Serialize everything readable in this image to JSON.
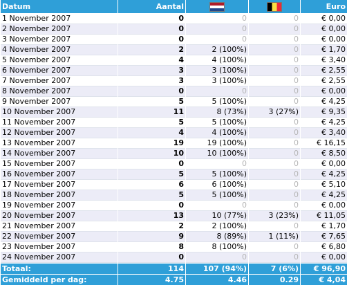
{
  "header": {
    "date": "Datum",
    "count": "Aantal",
    "nl_icon": "netherlands-flag",
    "be_icon": "belgium-flag",
    "euro": "Euro"
  },
  "rows": [
    {
      "date": "1 November 2007",
      "count": "0",
      "nl": "0",
      "be": "0",
      "euro": "€ 0,00"
    },
    {
      "date": "2 November 2007",
      "count": "0",
      "nl": "0",
      "be": "0",
      "euro": "€ 0,00"
    },
    {
      "date": "3 November 2007",
      "count": "0",
      "nl": "0",
      "be": "0",
      "euro": "€ 0,00"
    },
    {
      "date": "4 November 2007",
      "count": "2",
      "nl": "2 (100%)",
      "be": "0",
      "euro": "€ 1,70"
    },
    {
      "date": "5 November 2007",
      "count": "4",
      "nl": "4 (100%)",
      "be": "0",
      "euro": "€ 3,40"
    },
    {
      "date": "6 November 2007",
      "count": "3",
      "nl": "3 (100%)",
      "be": "0",
      "euro": "€ 2,55"
    },
    {
      "date": "7 November 2007",
      "count": "3",
      "nl": "3 (100%)",
      "be": "0",
      "euro": "€ 2,55"
    },
    {
      "date": "8 November 2007",
      "count": "0",
      "nl": "0",
      "be": "0",
      "euro": "€ 0,00"
    },
    {
      "date": "9 November 2007",
      "count": "5",
      "nl": "5 (100%)",
      "be": "0",
      "euro": "€ 4,25"
    },
    {
      "date": "10 November 2007",
      "count": "11",
      "nl": "8 (73%)",
      "be": "3 (27%)",
      "euro": "€ 9,35"
    },
    {
      "date": "11 November 2007",
      "count": "5",
      "nl": "5 (100%)",
      "be": "0",
      "euro": "€ 4,25"
    },
    {
      "date": "12 November 2007",
      "count": "4",
      "nl": "4 (100%)",
      "be": "0",
      "euro": "€ 3,40"
    },
    {
      "date": "13 November 2007",
      "count": "19",
      "nl": "19 (100%)",
      "be": "0",
      "euro": "€ 16,15"
    },
    {
      "date": "14 November 2007",
      "count": "10",
      "nl": "10 (100%)",
      "be": "0",
      "euro": "€ 8,50"
    },
    {
      "date": "15 November 2007",
      "count": "0",
      "nl": "0",
      "be": "0",
      "euro": "€ 0,00"
    },
    {
      "date": "16 November 2007",
      "count": "5",
      "nl": "5 (100%)",
      "be": "0",
      "euro": "€ 4,25"
    },
    {
      "date": "17 November 2007",
      "count": "6",
      "nl": "6 (100%)",
      "be": "0",
      "euro": "€ 5,10"
    },
    {
      "date": "18 November 2007",
      "count": "5",
      "nl": "5 (100%)",
      "be": "0",
      "euro": "€ 4,25"
    },
    {
      "date": "19 November 2007",
      "count": "0",
      "nl": "0",
      "be": "0",
      "euro": "€ 0,00"
    },
    {
      "date": "20 November 2007",
      "count": "13",
      "nl": "10 (77%)",
      "be": "3 (23%)",
      "euro": "€ 11,05"
    },
    {
      "date": "21 November 2007",
      "count": "2",
      "nl": "2 (100%)",
      "be": "0",
      "euro": "€ 1,70"
    },
    {
      "date": "22 November 2007",
      "count": "9",
      "nl": "8 (89%)",
      "be": "1 (11%)",
      "euro": "€ 7,65"
    },
    {
      "date": "23 November 2007",
      "count": "8",
      "nl": "8 (100%)",
      "be": "0",
      "euro": "€ 6,80"
    },
    {
      "date": "24 November 2007",
      "count": "0",
      "nl": "0",
      "be": "0",
      "euro": "€ 0,00"
    }
  ],
  "footer": {
    "total_label": "Totaal:",
    "total_count": "114",
    "total_nl": "107 (94%)",
    "total_be": "7 (6%)",
    "total_euro": "€ 96,90",
    "avg_label": "Gemiddeld per dag:",
    "avg_count": "4.75",
    "avg_nl": "4.46",
    "avg_be": "0.29",
    "avg_euro": "€ 4,04"
  },
  "colors": {
    "header_bg": "#2f9fd8",
    "row_alt_bg": "#ececf7",
    "zero_text": "#b4b4b4"
  }
}
